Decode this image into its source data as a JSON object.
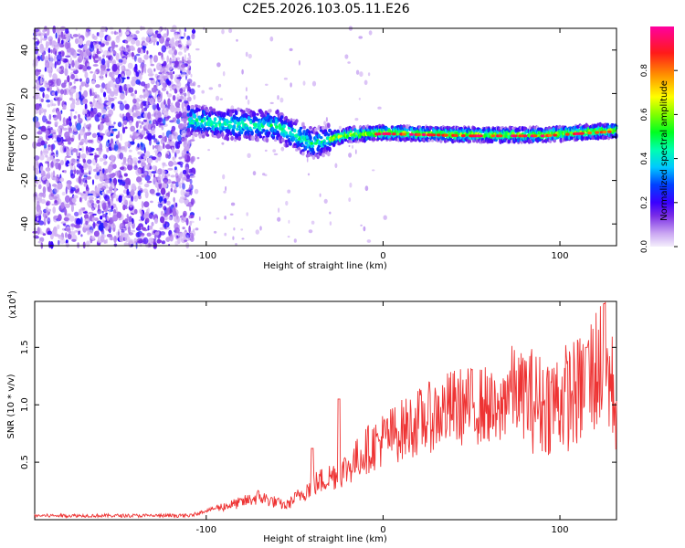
{
  "title": "C2E5.2026.103.05.11.E26",
  "chart_data": [
    {
      "type": "heatmap",
      "xlabel": "Height of straight line (km)",
      "ylabel": "Frequency (Hz)",
      "xlim": [
        -197,
        132
      ],
      "ylim": [
        -50,
        50
      ],
      "xticks": [
        -100,
        0,
        100
      ],
      "yticks": [
        -40,
        -20,
        0,
        20,
        40
      ],
      "colorbar": {
        "label": "Normalized spectral amplitude",
        "range": [
          0,
          1
        ],
        "ticks": [
          0.0,
          0.2,
          0.4,
          0.6,
          0.8
        ],
        "tick_labels": [
          "0.0",
          "0.2",
          "0.4",
          "0.6",
          "0.8"
        ]
      },
      "ridge": {
        "description_points": [
          {
            "x": -110,
            "freq": 8
          },
          {
            "x": -90,
            "freq": 6
          },
          {
            "x": -60,
            "freq": 5
          },
          {
            "x": -40,
            "freq": -3
          },
          {
            "x": -20,
            "freq": 1
          },
          {
            "x": 0,
            "freq": 2
          },
          {
            "x": 50,
            "freq": 1
          },
          {
            "x": 90,
            "freq": 1
          },
          {
            "x": 130,
            "freq": 3
          }
        ]
      },
      "noise_region": {
        "x_from": -197,
        "x_to": -107
      }
    },
    {
      "type": "line",
      "xlabel": "Height of straight line (km)",
      "ylabel": "SNR (10 * v/v)",
      "y_multiplier": "(x10",
      "y_multiplier_exp": "4",
      "y_multiplier_close": ")",
      "xlim": [
        -197,
        132
      ],
      "ylim": [
        0,
        1.9
      ],
      "xticks": [
        -100,
        0,
        100
      ],
      "yticks": [
        0.5,
        1.0,
        1.5
      ],
      "ytick_labels": [
        "0.5",
        "1.0",
        "1.5"
      ],
      "series": [
        {
          "name": "SNR",
          "color": "#ee3333",
          "envelope": [
            {
              "x": -197,
              "y": 0.03
            },
            {
              "x": -110,
              "y": 0.03
            },
            {
              "x": -100,
              "y": 0.08
            },
            {
              "x": -80,
              "y": 0.15
            },
            {
              "x": -70,
              "y": 0.2
            },
            {
              "x": -55,
              "y": 0.12
            },
            {
              "x": -40,
              "y": 0.3
            },
            {
              "x": -20,
              "y": 0.45
            },
            {
              "x": -10,
              "y": 0.6
            },
            {
              "x": 0,
              "y": 0.7
            },
            {
              "x": 20,
              "y": 0.85
            },
            {
              "x": 40,
              "y": 0.98
            },
            {
              "x": 60,
              "y": 1.0
            },
            {
              "x": 65,
              "y": 0.85
            },
            {
              "x": 70,
              "y": 1.15
            },
            {
              "x": 90,
              "y": 1.0
            },
            {
              "x": 110,
              "y": 1.1
            },
            {
              "x": 125,
              "y": 1.4
            },
            {
              "x": 132,
              "y": 1.0
            }
          ],
          "peaks": [
            {
              "x": -40,
              "y": 0.62
            },
            {
              "x": -25,
              "y": 1.05
            },
            {
              "x": 115,
              "y": 1.5
            },
            {
              "x": 125,
              "y": 1.88
            }
          ]
        }
      ]
    }
  ]
}
